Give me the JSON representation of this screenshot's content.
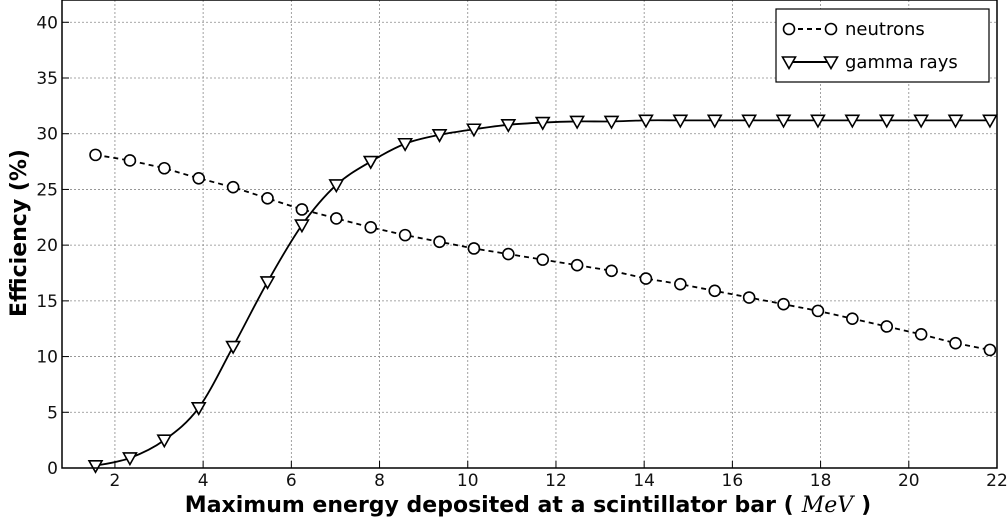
{
  "chart_data": {
    "type": "line",
    "title": "",
    "xlabel": {
      "prefix": "Maximum energy deposited at a scintillator bar (",
      "unit": "MeV",
      "suffix": ")"
    },
    "ylabel": "Efficiency (%)",
    "xlim": [
      0.8,
      22
    ],
    "ylim": [
      0,
      42
    ],
    "xticks": [
      2,
      4,
      6,
      8,
      10,
      12,
      14,
      16,
      18,
      20,
      22
    ],
    "yticks": [
      0,
      5,
      10,
      15,
      20,
      25,
      30,
      35,
      40
    ],
    "grid": true,
    "legend": {
      "placement": "top-right"
    },
    "series": [
      {
        "name": "neutrons",
        "marker": "circle",
        "line_style": "dashed",
        "color": "#000000",
        "x": [
          1.56,
          2.34,
          3.12,
          3.9,
          4.68,
          5.46,
          6.24,
          7.02,
          7.8,
          8.58,
          9.36,
          10.14,
          10.92,
          11.7,
          12.48,
          13.26,
          14.04,
          14.82,
          15.6,
          16.38,
          17.16,
          17.94,
          18.72,
          19.5,
          20.28,
          21.06,
          21.84
        ],
        "y": [
          28.1,
          27.6,
          26.9,
          26.0,
          25.2,
          24.2,
          23.2,
          22.4,
          21.6,
          20.9,
          20.3,
          19.7,
          19.2,
          18.7,
          18.2,
          17.7,
          17.0,
          16.5,
          15.9,
          15.3,
          14.7,
          14.1,
          13.4,
          12.7,
          12.0,
          11.2,
          10.6
        ]
      },
      {
        "name": "gamma rays",
        "marker": "triangle-down",
        "line_style": "solid",
        "color": "#000000",
        "x": [
          1.56,
          2.34,
          3.12,
          3.9,
          4.68,
          5.46,
          6.24,
          7.02,
          7.8,
          8.58,
          9.36,
          10.14,
          10.92,
          11.7,
          12.48,
          13.26,
          14.04,
          14.82,
          15.6,
          16.38,
          17.16,
          17.94,
          18.72,
          19.5,
          20.28,
          21.06,
          21.84
        ],
        "y": [
          0.2,
          0.9,
          2.5,
          5.4,
          10.9,
          16.7,
          21.8,
          25.4,
          27.5,
          29.1,
          29.9,
          30.4,
          30.8,
          31.0,
          31.1,
          31.1,
          31.2,
          31.2,
          31.2,
          31.2,
          31.2,
          31.2,
          31.2,
          31.2,
          31.2,
          31.2,
          31.2
        ]
      }
    ]
  }
}
